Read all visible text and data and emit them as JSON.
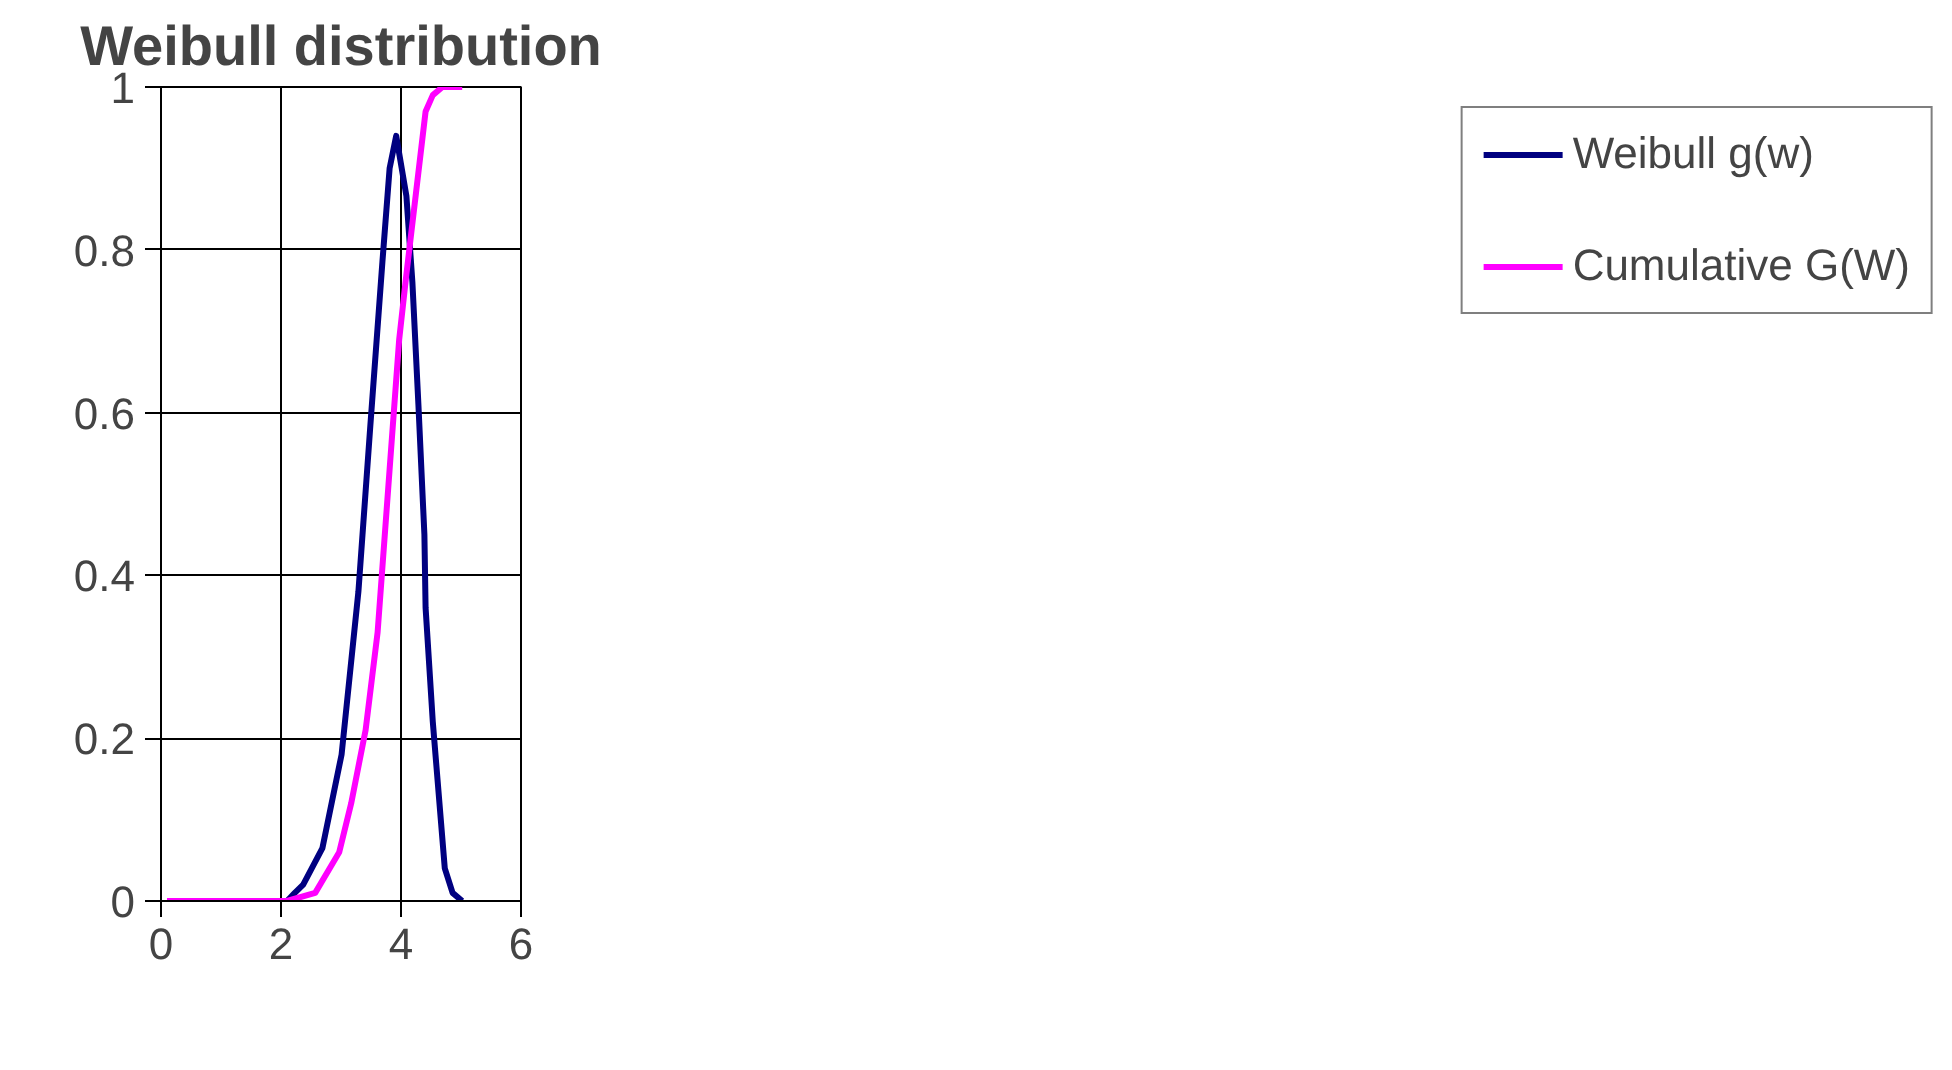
{
  "chart_data": {
    "type": "line",
    "title": "Weibull distribution",
    "xlim": [
      0,
      6
    ],
    "xticks": [
      0,
      2,
      4,
      6
    ],
    "ylim": [
      0,
      1
    ],
    "yticks": [
      0,
      0.2,
      0.4,
      0.6,
      0.8,
      1
    ],
    "grid": true,
    "legend": "right",
    "marker": "none",
    "line_style": "solid",
    "series": [
      {
        "name": "Weibull g(w)",
        "color": "#000080",
        "x": [
          0.1,
          1.0,
          2.1,
          2.23,
          2.37,
          2.69,
          3.01,
          3.29,
          3.49,
          3.69,
          3.81,
          3.92,
          4.09,
          4.19,
          4.29,
          4.39,
          4.41,
          4.53,
          4.73,
          4.86,
          5.02
        ],
        "values": [
          0,
          0,
          0,
          0.01,
          0.02,
          0.065,
          0.18,
          0.38,
          0.585,
          0.785,
          0.9,
          0.94,
          0.866,
          0.76,
          0.61,
          0.45,
          0.36,
          0.22,
          0.04,
          0.01,
          0
        ]
      },
      {
        "name": "Cumulative G(W)",
        "color": "#ff00ff",
        "x": [
          0.1,
          1.0,
          2.1,
          2.57,
          2.97,
          3.17,
          3.41,
          3.61,
          3.81,
          3.97,
          4.09,
          4.25,
          4.41,
          4.53,
          4.69,
          5.02
        ],
        "values": [
          0,
          0,
          0,
          0.01,
          0.06,
          0.12,
          0.21,
          0.33,
          0.53,
          0.69,
          0.77,
          0.87,
          0.97,
          0.99,
          1.0,
          1.0
        ]
      }
    ]
  }
}
